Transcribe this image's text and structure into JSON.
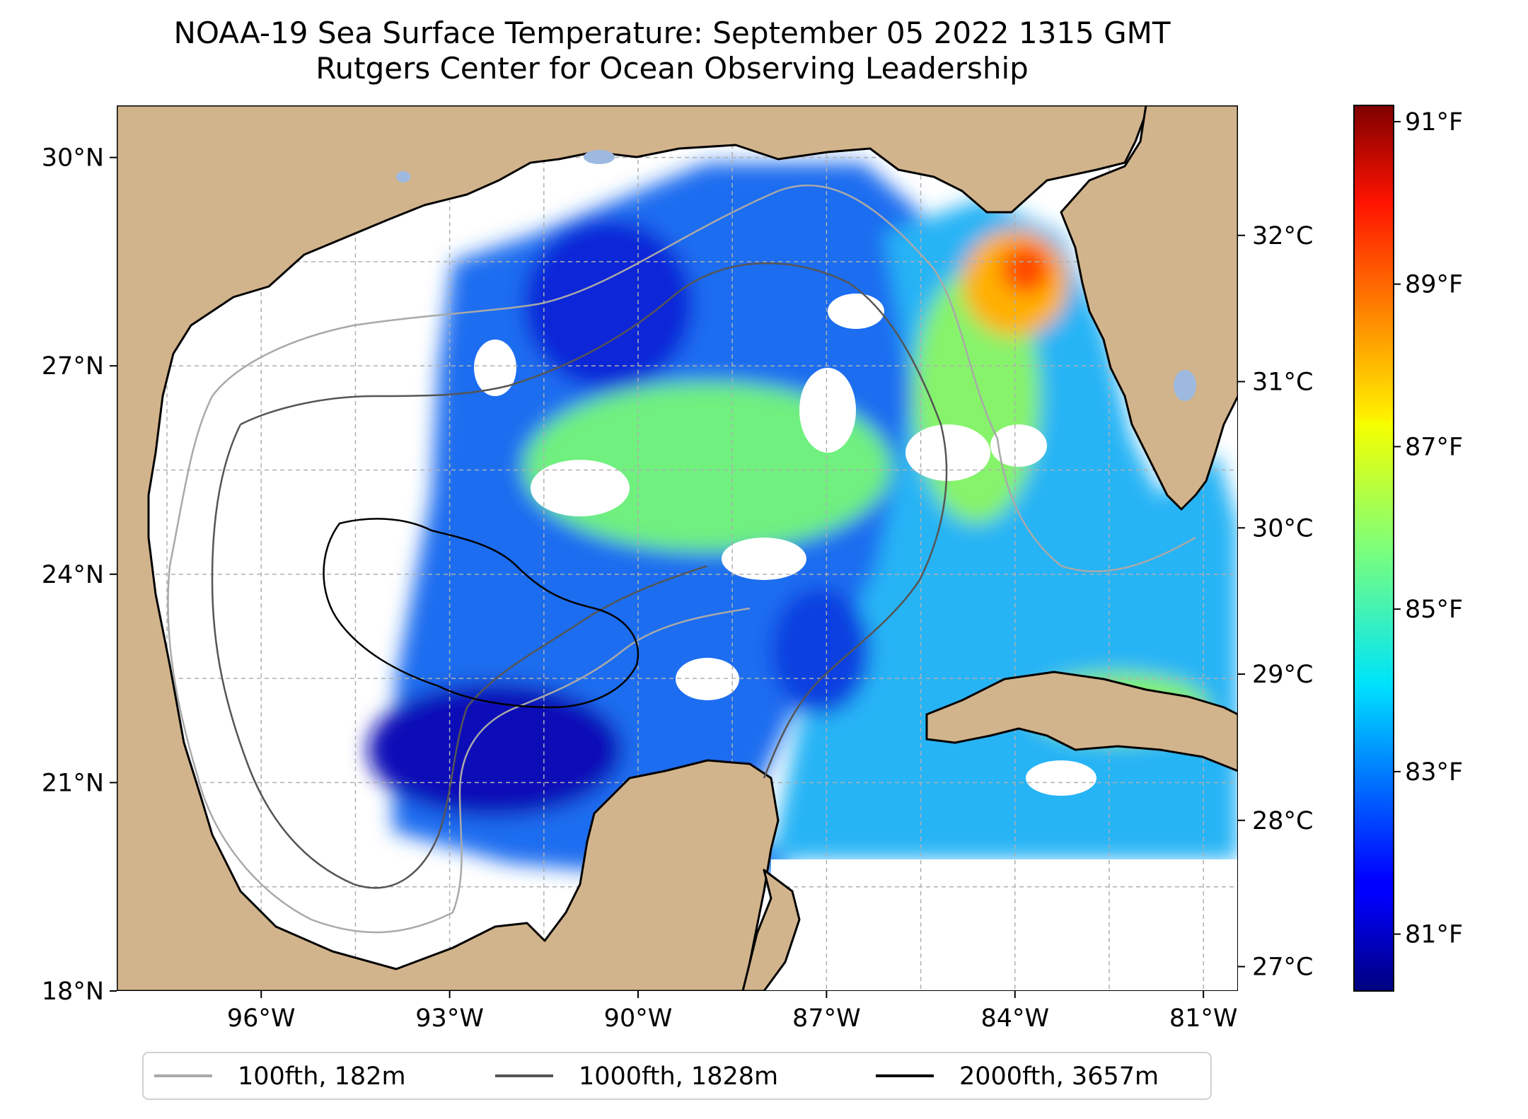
{
  "title": {
    "line1": "NOAA-19 Sea Surface Temperature: September 05 2022 1315 GMT",
    "line2": "Rutgers Center for Ocean Observing Leadership"
  },
  "map": {
    "lon_range": [
      -98.3,
      -80.45
    ],
    "lat_range": [
      18,
      30.75
    ],
    "x_ticks": [
      {
        "lon": -96,
        "label": "96°W"
      },
      {
        "lon": -93,
        "label": "93°W"
      },
      {
        "lon": -90,
        "label": "90°W"
      },
      {
        "lon": -87,
        "label": "87°W"
      },
      {
        "lon": -84,
        "label": "84°W"
      },
      {
        "lon": -81,
        "label": "81°W"
      }
    ],
    "y_ticks": [
      {
        "lat": 30,
        "label": "30°N"
      },
      {
        "lat": 27,
        "label": "27°N"
      },
      {
        "lat": 24,
        "label": "24°N"
      },
      {
        "lat": 21,
        "label": "21°N"
      },
      {
        "lat": 18,
        "label": "18°N"
      }
    ],
    "colors": {
      "land": "#d2b48c",
      "lakes": "#9db9e0",
      "ocean_nodata": "#ffffff",
      "grid": "#b0b0b0"
    }
  },
  "colorbar": {
    "colormap": "jet",
    "range_f": [
      80.3,
      91.2
    ],
    "fahrenheit_ticks": [
      {
        "value": 91,
        "label": "91°F"
      },
      {
        "value": 89,
        "label": "89°F"
      },
      {
        "value": 87,
        "label": "87°F"
      },
      {
        "value": 85,
        "label": "85°F"
      },
      {
        "value": 83,
        "label": "83°F"
      },
      {
        "value": 81,
        "label": "81°F"
      }
    ],
    "celsius_ticks": [
      {
        "value": 32,
        "label": "32°C"
      },
      {
        "value": 31,
        "label": "31°C"
      },
      {
        "value": 30,
        "label": "30°C"
      },
      {
        "value": 29,
        "label": "29°C"
      },
      {
        "value": 28,
        "label": "28°C"
      },
      {
        "value": 27,
        "label": "27°C"
      }
    ]
  },
  "legend": {
    "placement": "below map",
    "items": [
      {
        "label": "100fth, 182m",
        "color": "#a9a9a9"
      },
      {
        "label": "1000fth, 1828m",
        "color": "#555555"
      },
      {
        "label": "2000fth, 3657m",
        "color": "#000000"
      }
    ]
  }
}
